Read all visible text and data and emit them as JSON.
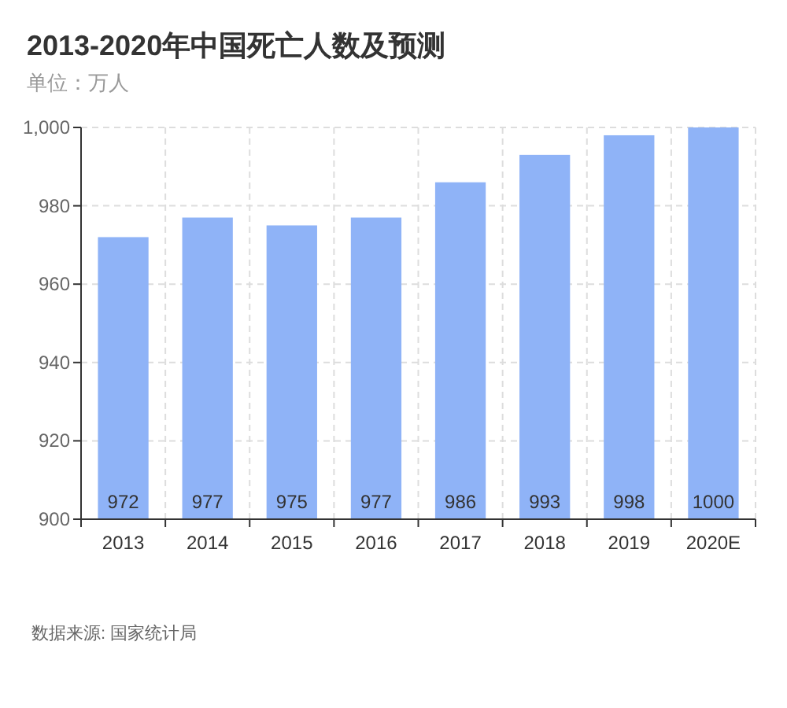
{
  "chart_data": {
    "type": "bar",
    "title": "2013-2020年中国死亡人数及预测",
    "subtitle": "单位：万人",
    "categories": [
      "2013",
      "2014",
      "2015",
      "2016",
      "2017",
      "2018",
      "2019",
      "2020E"
    ],
    "values": [
      972,
      977,
      975,
      977,
      986,
      993,
      998,
      1000
    ],
    "color": "#8fb3f7",
    "data_labels": true,
    "ylim": [
      900,
      1000
    ],
    "yticks": [
      900,
      920,
      940,
      960,
      980,
      {
        "value": 1000,
        "label": "1,000"
      }
    ],
    "grid": true,
    "annotations": [
      "数据来源: 国家统计局"
    ]
  }
}
